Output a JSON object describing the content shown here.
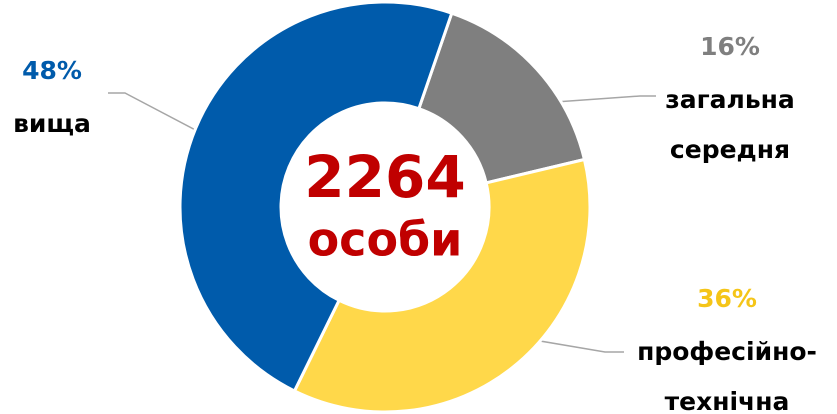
{
  "chart_data": {
    "type": "donut",
    "categories": [
      [
        "загальна",
        "середня"
      ],
      [
        "професійно-",
        "технічна"
      ],
      [
        "вища"
      ]
    ],
    "values": [
      16,
      36,
      48
    ],
    "value_labels": [
      "16%",
      "36%",
      "48%"
    ],
    "colors": [
      "#7f7f7f",
      "#ffd84a",
      "#005bab"
    ],
    "label_colors": [
      "#7f7f7f",
      "#f5c518",
      "#005bab"
    ],
    "center_text": [
      "2264",
      "особи"
    ],
    "center_color": "#c00000"
  }
}
